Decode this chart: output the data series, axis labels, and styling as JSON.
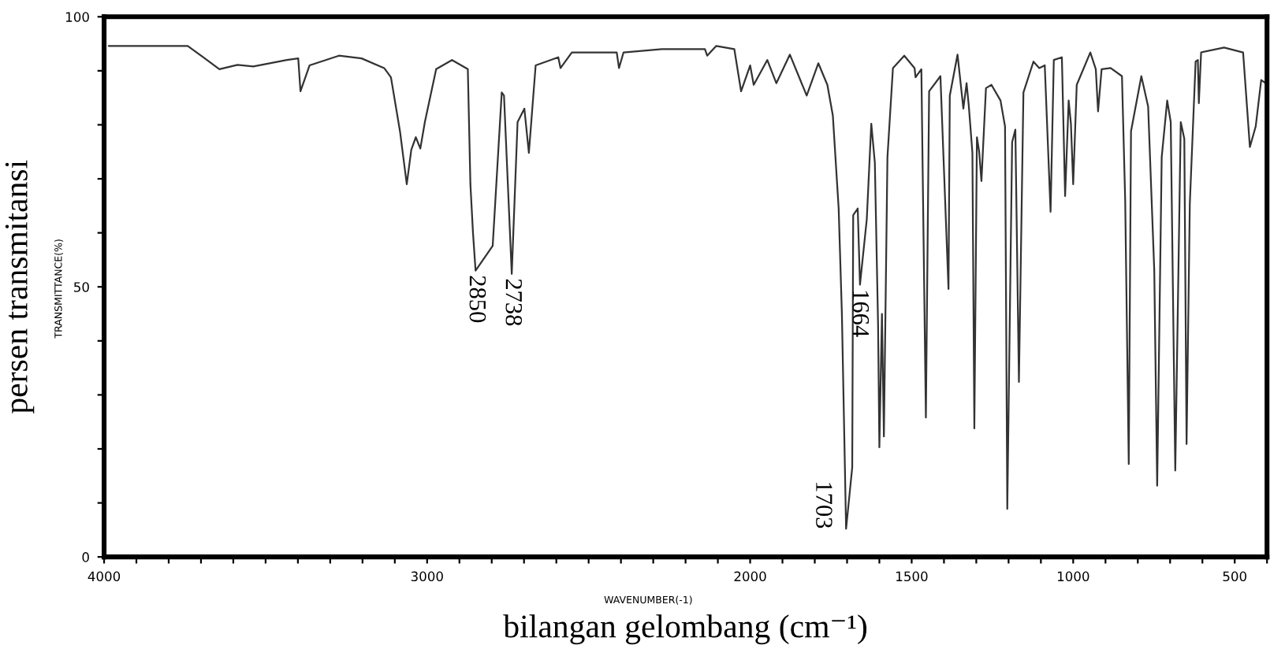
{
  "chart_data": {
    "type": "line",
    "xlabel": "bilangan gelombang (cm⁻¹)",
    "ylabel": "persen transmitansi",
    "annotations": [
      {
        "text": "2850",
        "x": 2850,
        "y": 53
      },
      {
        "text": "2738",
        "x": 2738,
        "y": 52.4
      },
      {
        "text": "1664",
        "x": 1664,
        "y": 50.4
      },
      {
        "text": "1703",
        "x": 1703,
        "y": 5.2
      },
      "TRANSMITTANCE(%)",
      "WAVENUMBER(-1)"
    ],
    "xlim": [
      4000,
      400
    ],
    "ylim": [
      0,
      100
    ],
    "xticks": [
      4000,
      {
        "value": 3900,
        "label": null
      },
      {
        "value": 3800,
        "label": null
      },
      {
        "value": 3700,
        "label": null
      },
      {
        "value": 3600,
        "label": null
      },
      {
        "value": 3500,
        "label": null
      },
      {
        "value": 3400,
        "label": null
      },
      {
        "value": 3300,
        "label": null
      },
      {
        "value": 3200,
        "label": null
      },
      {
        "value": 3100,
        "label": null
      },
      3000,
      {
        "value": 2900,
        "label": null
      },
      {
        "value": 2800,
        "label": null
      },
      {
        "value": 2700,
        "label": null
      },
      {
        "value": 2600,
        "label": null
      },
      {
        "value": 2500,
        "label": null
      },
      {
        "value": 2400,
        "label": null
      },
      {
        "value": 2300,
        "label": null
      },
      {
        "value": 2200,
        "label": null
      },
      {
        "value": 2100,
        "label": null
      },
      2000,
      {
        "value": 1900,
        "label": null
      },
      {
        "value": 1800,
        "label": null
      },
      {
        "value": 1700,
        "label": null
      },
      {
        "value": 1600,
        "label": null
      },
      1500,
      {
        "value": 1400,
        "label": null
      },
      {
        "value": 1300,
        "label": null
      },
      {
        "value": 1200,
        "label": null
      },
      {
        "value": 1100,
        "label": null
      },
      1000,
      {
        "value": 900,
        "label": null
      },
      {
        "value": 800,
        "label": null
      },
      {
        "value": 700,
        "label": null
      },
      {
        "value": 600,
        "label": null
      },
      500,
      {
        "value": 400,
        "label": null
      }
    ],
    "yticks": [
      0,
      {
        "value": 10,
        "label": null
      },
      {
        "value": 20,
        "label": null
      },
      {
        "value": 30,
        "label": null
      },
      {
        "value": 40,
        "label": null
      },
      50,
      {
        "value": 60,
        "label": null
      },
      {
        "value": 70,
        "label": null
      },
      {
        "value": 80,
        "label": null
      },
      {
        "value": 90,
        "label": null
      },
      100
    ],
    "grid": false,
    "legend": false,
    "marker": "none",
    "line_style": "solid",
    "series": [
      {
        "color": "#333333",
        "x": [
          3986,
          3853,
          3741,
          3643,
          3587,
          3538,
          3434,
          3399,
          3392,
          3364,
          3273,
          3203,
          3133,
          3112,
          3084,
          3063,
          3049,
          3035,
          3021,
          3007,
          2972,
          2923,
          2874,
          2866,
          2858,
          2850,
          2797,
          2769,
          2762,
          2738,
          2720,
          2699,
          2685,
          2664,
          2594,
          2587,
          2552,
          2413,
          2406,
          2392,
          2273,
          2140,
          2133,
          2105,
          2049,
          2028,
          2000,
          1989,
          1947,
          1919,
          1877,
          1825,
          1789,
          1761,
          1744,
          1726,
          1716,
          1703,
          1684,
          1681,
          1667,
          1660,
          1639,
          1625,
          1614,
          1604,
          1600,
          1592,
          1586,
          1575,
          1558,
          1523,
          1491,
          1488,
          1470,
          1456,
          1446,
          1411,
          1386,
          1382,
          1358,
          1340,
          1330,
          1323,
          1312,
          1306,
          1298,
          1291,
          1284,
          1270,
          1253,
          1225,
          1211,
          1204,
          1189,
          1179,
          1168,
          1154,
          1123,
          1105,
          1088,
          1070,
          1060,
          1035,
          1025,
          1014,
          1007,
          1000,
          989,
          947,
          930,
          923,
          912,
          884,
          849,
          839,
          828,
          821,
          789,
          768,
          749,
          740,
          726,
          709,
          698,
          684,
          667,
          656,
          649,
          639,
          621,
          614,
          611,
          604,
          533,
          474,
          453,
          435,
          418,
          404
        ],
        "values": [
          94.6,
          94.6,
          94.6,
          90.3,
          91.1,
          90.8,
          92,
          92.3,
          86.2,
          91,
          92.8,
          92.3,
          90.5,
          88.8,
          78.8,
          69,
          75.4,
          77.7,
          75.6,
          80.5,
          90.3,
          92,
          90.3,
          69,
          60,
          53,
          57.6,
          86,
          85.4,
          52.4,
          80.5,
          83,
          74.8,
          91,
          92.5,
          90.5,
          93.4,
          93.4,
          90.5,
          93.4,
          94,
          94,
          92.8,
          94.6,
          94,
          86.2,
          91,
          87.4,
          92,
          87.7,
          93,
          85.4,
          91.4,
          87.4,
          81.7,
          64.5,
          45,
          5.2,
          16.6,
          63.3,
          64.5,
          50.4,
          62.5,
          80.2,
          73,
          43,
          20.3,
          45,
          22.3,
          74,
          90.5,
          92.8,
          90.5,
          88.8,
          90.3,
          25.8,
          86.2,
          89,
          49.6,
          85.4,
          93,
          83,
          87.7,
          83.4,
          74.8,
          23.8,
          77.7,
          75,
          69.6,
          86.8,
          87.4,
          84.5,
          79.7,
          8.9,
          76.8,
          79.1,
          32.4,
          86,
          91.7,
          90.5,
          91,
          63.9,
          92,
          92.5,
          66.8,
          84.5,
          80.2,
          69,
          87.4,
          93.4,
          90.3,
          82.5,
          90.3,
          90.5,
          89,
          66,
          17.2,
          78.8,
          89,
          83.4,
          53,
          13.2,
          74,
          84.5,
          80.5,
          16,
          80.5,
          77.4,
          20.9,
          65.3,
          91.7,
          92,
          84,
          93.4,
          94.3,
          93.4,
          75.9,
          79.7,
          88.3,
          87.7
        ]
      }
    ]
  }
}
